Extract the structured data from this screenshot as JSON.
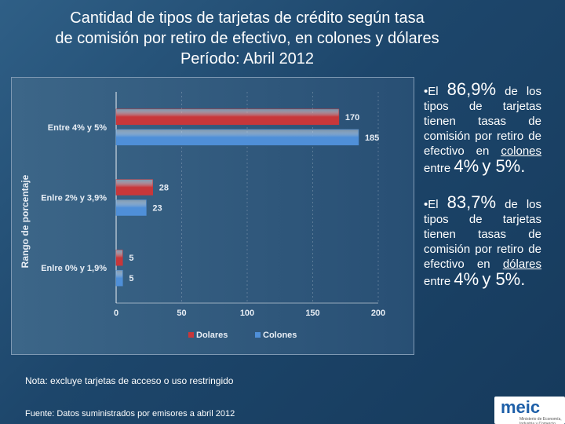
{
  "title": {
    "line1": "Cantidad de tipos de tarjetas de crédito según tasa",
    "line2": "de comisión por retiro de efectivo,  en colones y dólares",
    "line3": "Período: Abril 2012"
  },
  "chart_data": {
    "type": "bar",
    "orientation": "horizontal",
    "ylabel": "Rango de porcentaje",
    "categories": [
      "Entre 4% y 5%",
      "Enlre 2% y 3,9%",
      "Enlre 0% y 1,9%"
    ],
    "series": [
      {
        "name": "Dolares",
        "values": [
          170,
          28,
          5
        ],
        "color": "#c8373a"
      },
      {
        "name": "Colones",
        "values": [
          185,
          23,
          5
        ],
        "color": "#4f8fd8"
      }
    ],
    "xlim": [
      0,
      200
    ],
    "xticks": [
      0,
      50,
      100,
      150,
      200
    ],
    "legend": "bottom"
  },
  "notes": {
    "b1_prefix": "•El",
    "b1_pct": "86,9%",
    "b1_de": "de los",
    "b1_body": "tipos de tarjetas tienen tasas de comisión por retiro de efectivo en",
    "b1_currency": "colones",
    "b1_entre": " entre ",
    "b1_low": "4%",
    "b1_high": "y 5%.",
    "b2_prefix": "•El",
    "b2_pct": "83,7%",
    "b2_de": "de los",
    "b2_body": "tipos de tarjetas tienen tasas de comisión por retiro de efectivo en",
    "b2_currency": "dólares",
    "b2_entre": " entre ",
    "b2_low": "4%",
    "b2_high": "y 5%."
  },
  "footer": {
    "note": "Nota: excluye tarjetas de acceso o uso restringido",
    "source": "Fuente: Datos suministrados por emisores  a abril  2012"
  },
  "logo": {
    "text": "meic",
    "tagline": "Ministerio de Economía, Industria y Comercio"
  }
}
